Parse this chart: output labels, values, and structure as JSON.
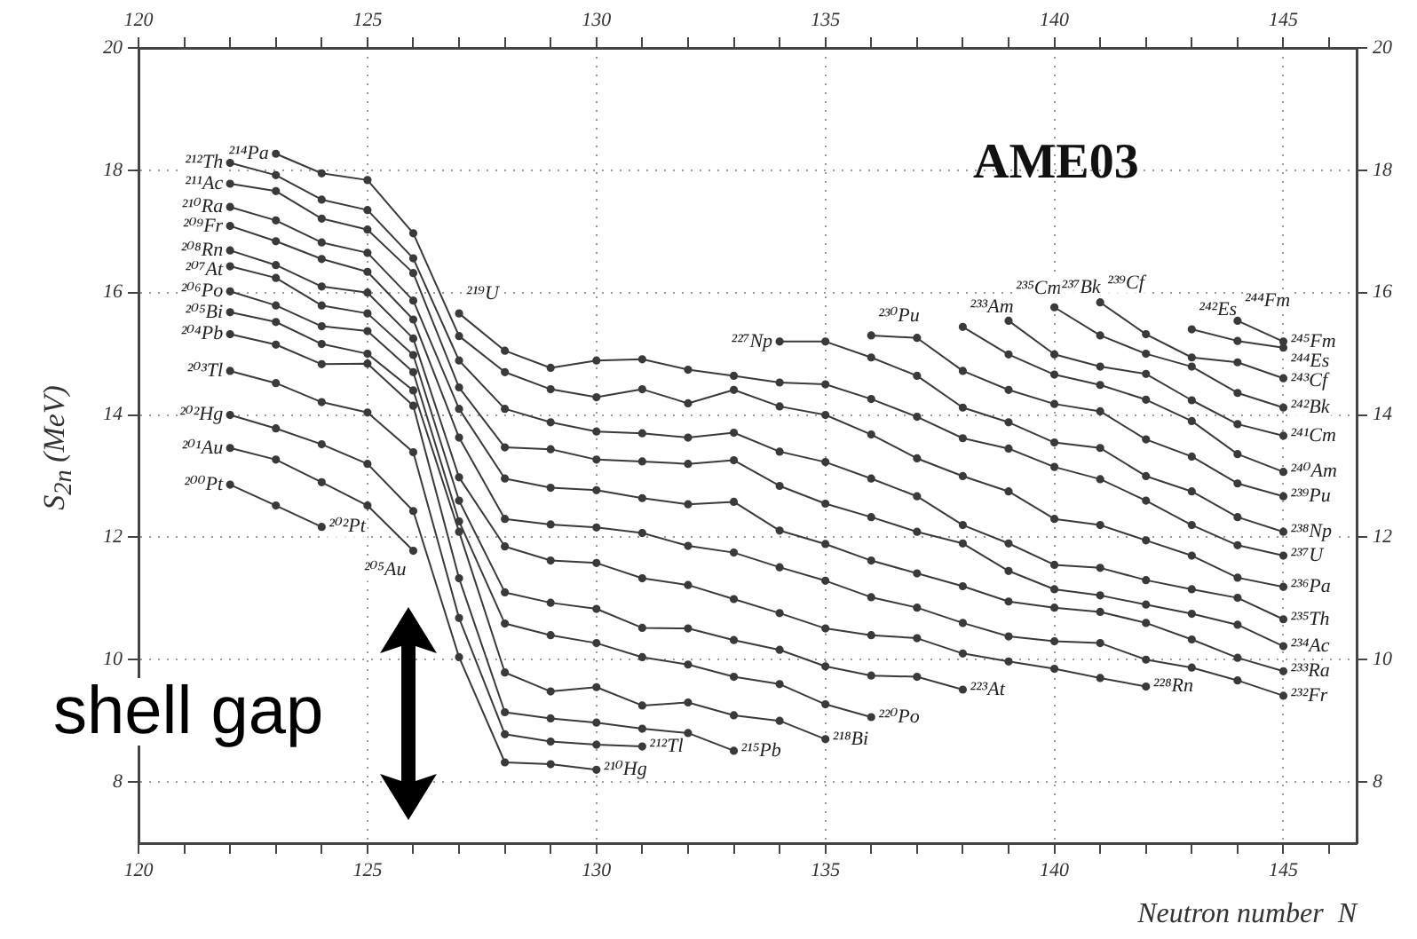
{
  "chart_data": {
    "type": "line",
    "xlabel": "Neutron number  N",
    "ylabel": "S$_{2n}$ (MeV)",
    "xlim": [
      120,
      146.6
    ],
    "x2lim": [
      120,
      146.6
    ],
    "ylim": [
      7,
      20
    ],
    "y2lim": [
      7,
      20
    ],
    "xticks": [
      120,
      {
        "value": 121,
        "label": null
      },
      {
        "value": 122,
        "label": null
      },
      {
        "value": 123,
        "label": null
      },
      {
        "value": 124,
        "label": null
      },
      125,
      {
        "value": 126,
        "label": null
      },
      {
        "value": 127,
        "label": null
      },
      {
        "value": 128,
        "label": null
      },
      {
        "value": 129,
        "label": null
      },
      130,
      {
        "value": 131,
        "label": null
      },
      {
        "value": 132,
        "label": null
      },
      {
        "value": 133,
        "label": null
      },
      {
        "value": 134,
        "label": null
      },
      135,
      {
        "value": 136,
        "label": null
      },
      {
        "value": 137,
        "label": null
      },
      {
        "value": 138,
        "label": null
      },
      {
        "value": 139,
        "label": null
      },
      140,
      {
        "value": 141,
        "label": null
      },
      {
        "value": 142,
        "label": null
      },
      {
        "value": 143,
        "label": null
      },
      {
        "value": 144,
        "label": null
      },
      145,
      {
        "value": 146,
        "label": null
      }
    ],
    "x2ticks": [
      120,
      {
        "value": 121,
        "label": null
      },
      {
        "value": 122,
        "label": null
      },
      {
        "value": 123,
        "label": null
      },
      {
        "value": 124,
        "label": null
      },
      125,
      {
        "value": 126,
        "label": null
      },
      {
        "value": 127,
        "label": null
      },
      {
        "value": 128,
        "label": null
      },
      {
        "value": 129,
        "label": null
      },
      130,
      {
        "value": 131,
        "label": null
      },
      {
        "value": 132,
        "label": null
      },
      {
        "value": 133,
        "label": null
      },
      {
        "value": 134,
        "label": null
      },
      135,
      {
        "value": 136,
        "label": null
      },
      {
        "value": 137,
        "label": null
      },
      {
        "value": 138,
        "label": null
      },
      {
        "value": 139,
        "label": null
      },
      140,
      {
        "value": 141,
        "label": null
      },
      {
        "value": 142,
        "label": null
      },
      {
        "value": 143,
        "label": null
      },
      {
        "value": 144,
        "label": null
      },
      145,
      {
        "value": 146,
        "label": null
      }
    ],
    "yticks": [
      8,
      10,
      12,
      14,
      16,
      18,
      20
    ],
    "y2ticks": [
      8,
      10,
      12,
      14,
      16,
      18,
      20
    ],
    "grid": true,
    "marker": "circle",
    "line_style": "solid",
    "series": [
      {
        "color": "#3a3a3a",
        "x": [
          122,
          123,
          124
        ],
        "values": [
          12.86,
          12.52,
          12.17
        ]
      },
      {
        "color": "#3a3a3a",
        "x": [
          122,
          123,
          124,
          125,
          126
        ],
        "values": [
          13.46,
          13.27,
          12.9,
          12.52,
          11.78
        ]
      },
      {
        "color": "#3a3a3a",
        "x": [
          122,
          123,
          124,
          125,
          126,
          127,
          128,
          129,
          130
        ],
        "values": [
          14.0,
          13.78,
          13.52,
          13.2,
          12.43,
          10.04,
          8.32,
          8.29,
          8.2
        ]
      },
      {
        "color": "#3a3a3a",
        "x": [
          122,
          123,
          124,
          125,
          126,
          127,
          128,
          129,
          130,
          131
        ],
        "values": [
          14.72,
          14.52,
          14.21,
          14.04,
          13.39,
          10.68,
          8.78,
          8.66,
          8.61,
          8.58
        ]
      },
      {
        "color": "#3a3a3a",
        "x": [
          122,
          123,
          124,
          125,
          126,
          127,
          128,
          129,
          130,
          131,
          132,
          133
        ],
        "values": [
          15.32,
          15.15,
          14.83,
          14.84,
          14.15,
          11.33,
          9.14,
          9.04,
          8.97,
          8.87,
          8.8,
          8.51
        ]
      },
      {
        "color": "#3a3a3a",
        "x": [
          122,
          123,
          124,
          125,
          126,
          127,
          128,
          129,
          130,
          131,
          132,
          133,
          134,
          135
        ],
        "values": [
          15.68,
          15.52,
          15.16,
          15.0,
          14.4,
          12.09,
          9.79,
          9.48,
          9.55,
          9.25,
          9.3,
          9.09,
          9.0,
          8.7
        ]
      },
      {
        "color": "#3a3a3a",
        "x": [
          122,
          123,
          124,
          125,
          126,
          127,
          128,
          129,
          130,
          131,
          132,
          133,
          134,
          135,
          136
        ],
        "values": [
          16.02,
          15.79,
          15.45,
          15.37,
          14.7,
          12.26,
          10.59,
          10.4,
          10.27,
          10.04,
          9.92,
          9.72,
          9.6,
          9.27,
          9.06
        ]
      },
      {
        "color": "#3a3a3a",
        "x": [
          122,
          123,
          124,
          125,
          126,
          127,
          128,
          129,
          130,
          131,
          132,
          133,
          134,
          135,
          136,
          137,
          138
        ],
        "values": [
          16.43,
          16.24,
          15.79,
          15.66,
          14.98,
          12.6,
          11.1,
          10.93,
          10.83,
          10.52,
          10.51,
          10.32,
          10.16,
          9.89,
          9.74,
          9.72,
          9.51
        ]
      },
      {
        "color": "#3a3a3a",
        "x": [
          122,
          123,
          124,
          125,
          126,
          127,
          128,
          129,
          130,
          131,
          132,
          133,
          134,
          135,
          136,
          137,
          138,
          139,
          140,
          141,
          142
        ],
        "values": [
          16.69,
          16.45,
          16.1,
          16.0,
          15.25,
          12.98,
          11.85,
          11.62,
          11.58,
          11.33,
          11.22,
          10.99,
          10.76,
          10.51,
          10.4,
          10.35,
          10.1,
          9.97,
          9.85,
          9.7,
          9.56
        ]
      },
      {
        "color": "#3a3a3a",
        "x": [
          122,
          123,
          124,
          125,
          126,
          127,
          128,
          129,
          130,
          131,
          132,
          133,
          134,
          135,
          136,
          137,
          138,
          139,
          140,
          141,
          142,
          143,
          144,
          145
        ],
        "values": [
          17.09,
          16.84,
          16.55,
          16.34,
          15.56,
          13.63,
          12.3,
          12.21,
          12.16,
          12.07,
          11.86,
          11.75,
          11.51,
          11.29,
          11.02,
          10.85,
          10.6,
          10.38,
          10.3,
          10.27,
          10.0,
          9.87,
          9.66,
          9.41
        ]
      },
      {
        "color": "#3a3a3a",
        "x": [
          122,
          123,
          124,
          125,
          126,
          127,
          128,
          129,
          130,
          131,
          132,
          133,
          134,
          135,
          136,
          137,
          138,
          139,
          140,
          141,
          142,
          143,
          144,
          145
        ],
        "values": [
          17.4,
          17.18,
          16.82,
          16.65,
          15.87,
          14.1,
          12.96,
          12.81,
          12.77,
          12.64,
          12.54,
          12.58,
          12.11,
          11.89,
          11.62,
          11.41,
          11.2,
          10.95,
          10.85,
          10.78,
          10.6,
          10.33,
          10.03,
          9.81
        ]
      },
      {
        "color": "#3a3a3a",
        "x": [
          122,
          123,
          124,
          125,
          126,
          127,
          128,
          129,
          130,
          131,
          132,
          133,
          134,
          135,
          136,
          137,
          138,
          139,
          140,
          141,
          142,
          143,
          144,
          145
        ],
        "values": [
          17.78,
          17.66,
          17.21,
          17.03,
          16.32,
          14.45,
          13.47,
          13.44,
          13.27,
          13.24,
          13.2,
          13.26,
          12.84,
          12.55,
          12.33,
          12.09,
          11.9,
          11.45,
          11.15,
          11.05,
          10.9,
          10.75,
          10.57,
          10.22
        ]
      },
      {
        "color": "#3a3a3a",
        "x": [
          122,
          123,
          124,
          125,
          126,
          127,
          128,
          129,
          130,
          131,
          132,
          133,
          134,
          135,
          136,
          137,
          138,
          139,
          140,
          141,
          142,
          143,
          144,
          145
        ],
        "values": [
          18.12,
          17.92,
          17.52,
          17.35,
          16.56,
          14.89,
          14.1,
          13.88,
          13.73,
          13.7,
          13.63,
          13.71,
          13.4,
          13.23,
          12.96,
          12.67,
          12.2,
          11.9,
          11.55,
          11.5,
          11.3,
          11.15,
          11.01,
          10.66
        ]
      },
      {
        "color": "#3a3a3a",
        "x": [
          123,
          124,
          125,
          126,
          127,
          128,
          129,
          130,
          131,
          132,
          133,
          134,
          135,
          136,
          137,
          138,
          139,
          140,
          141,
          142,
          143,
          144,
          145
        ],
        "values": [
          18.27,
          17.95,
          17.84,
          16.97,
          15.29,
          14.7,
          14.42,
          14.29,
          14.42,
          14.19,
          14.41,
          14.14,
          14.0,
          13.68,
          13.29,
          13.0,
          12.75,
          12.3,
          12.2,
          11.95,
          11.7,
          11.34,
          11.19
        ]
      },
      {
        "color": "#3a3a3a",
        "x": [
          127,
          128,
          129,
          130,
          131,
          132,
          133,
          134,
          135,
          136,
          137,
          138,
          139,
          140,
          141,
          142,
          143,
          144,
          145
        ],
        "values": [
          15.66,
          15.05,
          14.77,
          14.89,
          14.91,
          14.74,
          14.64,
          14.53,
          14.5,
          14.26,
          13.97,
          13.62,
          13.45,
          13.15,
          12.95,
          12.6,
          12.2,
          11.87,
          11.7
        ]
      },
      {
        "color": "#3a3a3a",
        "x": [
          134,
          135,
          136,
          137,
          138,
          139,
          140,
          141,
          142,
          143,
          144,
          145
        ],
        "values": [
          15.2,
          15.2,
          14.94,
          14.64,
          14.12,
          13.88,
          13.55,
          13.46,
          13.0,
          12.75,
          12.33,
          12.09
        ]
      },
      {
        "color": "#3a3a3a",
        "x": [
          136,
          137,
          138,
          139,
          140,
          141,
          142,
          143,
          144,
          145
        ],
        "values": [
          15.3,
          15.26,
          14.72,
          14.41,
          14.18,
          14.06,
          13.6,
          13.32,
          12.88,
          12.67
        ]
      },
      {
        "color": "#3a3a3a",
        "x": [
          138,
          139,
          140,
          141,
          142,
          143,
          144,
          145
        ],
        "values": [
          15.44,
          14.99,
          14.66,
          14.49,
          14.25,
          13.9,
          13.36,
          13.07
        ]
      },
      {
        "color": "#3a3a3a",
        "x": [
          139,
          140,
          141,
          142,
          143,
          144,
          145
        ],
        "values": [
          15.54,
          14.99,
          14.79,
          14.67,
          14.24,
          13.85,
          13.66
        ]
      },
      {
        "color": "#3a3a3a",
        "x": [
          140,
          141,
          142,
          143,
          144,
          145
        ],
        "values": [
          15.76,
          15.3,
          15.0,
          14.79,
          14.36,
          14.12
        ]
      },
      {
        "color": "#3a3a3a",
        "x": [
          141,
          142,
          143,
          144,
          145
        ],
        "values": [
          15.84,
          15.32,
          14.94,
          14.86,
          14.6
        ]
      },
      {
        "color": "#3a3a3a",
        "x": [
          143,
          144,
          145
        ],
        "values": [
          15.4,
          15.21,
          15.1
        ]
      },
      {
        "color": "#3a3a3a",
        "x": [
          144,
          145
        ],
        "values": [
          15.54,
          15.2
        ]
      }
    ],
    "annotations": [
      "AME03",
      "shell gap",
      {
        "text": "²⁰⁰Pt",
        "x": 122,
        "y": 12.86
      },
      {
        "text": "²⁰¹Au",
        "x": 122,
        "y": 13.46
      },
      {
        "text": "²⁰²Hg",
        "x": 122,
        "y": 14.0
      },
      {
        "text": "²⁰³Tl",
        "x": 122,
        "y": 14.72
      },
      {
        "text": "²⁰⁴Pb",
        "x": 122,
        "y": 15.32
      },
      {
        "text": "²⁰⁵Bi",
        "x": 122,
        "y": 15.68
      },
      {
        "text": "²⁰⁶Po",
        "x": 122,
        "y": 16.02
      },
      {
        "text": "²⁰⁷At",
        "x": 122,
        "y": 16.43
      },
      {
        "text": "²⁰⁸Rn",
        "x": 122,
        "y": 16.69
      },
      {
        "text": "²⁰⁹Fr",
        "x": 122,
        "y": 17.09
      },
      {
        "text": "²¹⁰Ra",
        "x": 122,
        "y": 17.4
      },
      {
        "text": "²¹¹Ac",
        "x": 122,
        "y": 17.78
      },
      {
        "text": "²¹²Th",
        "x": 122,
        "y": 18.12
      },
      {
        "text": "²¹⁴Pa",
        "x": 123,
        "y": 18.27
      },
      {
        "text": "²¹⁹U",
        "x": 127,
        "y": 15.66
      },
      {
        "text": "²²⁷Np",
        "x": 134,
        "y": 15.2
      },
      {
        "text": "²³⁰Pu",
        "x": 136,
        "y": 15.3
      },
      {
        "text": "²³³Am",
        "x": 138,
        "y": 15.44
      },
      {
        "text": "²³⁵Cm",
        "x": 139,
        "y": 15.54
      },
      {
        "text": "²³⁷Bk",
        "x": 140,
        "y": 15.76
      },
      {
        "text": "²³⁹Cf",
        "x": 141,
        "y": 15.84
      },
      {
        "text": "²⁴²Es",
        "x": 143,
        "y": 15.4
      },
      {
        "text": "²⁴⁴Fm",
        "x": 144,
        "y": 15.54
      },
      {
        "text": "²⁰²Pt",
        "x": 124,
        "y": 12.17
      },
      {
        "text": "²⁰⁵Au",
        "x": 126,
        "y": 11.78
      },
      {
        "text": "²¹⁰Hg",
        "x": 130,
        "y": 8.2
      },
      {
        "text": "²¹²Tl",
        "x": 131,
        "y": 8.58
      },
      {
        "text": "²¹⁵Pb",
        "x": 133,
        "y": 8.51
      },
      {
        "text": "²¹⁸Bi",
        "x": 135,
        "y": 8.7
      },
      {
        "text": "²²⁰Po",
        "x": 136,
        "y": 9.06
      },
      {
        "text": "²²³At",
        "x": 138,
        "y": 9.51
      },
      {
        "text": "²²⁸Rn",
        "x": 142,
        "y": 9.56
      },
      {
        "text": "²⁴⁵Fm",
        "x": 145,
        "y": 15.2
      },
      {
        "text": "²⁴⁴Es",
        "x": 145,
        "y": 15.1
      },
      {
        "text": "²⁴³Cf",
        "x": 145,
        "y": 14.6
      },
      {
        "text": "²⁴²Bk",
        "x": 145,
        "y": 14.12
      },
      {
        "text": "²⁴¹Cm",
        "x": 145,
        "y": 13.66
      },
      {
        "text": "²⁴⁰Am",
        "x": 145,
        "y": 13.07
      },
      {
        "text": "²³⁹Pu",
        "x": 145,
        "y": 12.67
      },
      {
        "text": "²³⁸Np",
        "x": 145,
        "y": 12.09
      },
      {
        "text": "²³⁷U",
        "x": 145,
        "y": 11.7
      },
      {
        "text": "²³⁶Pa",
        "x": 145,
        "y": 11.19
      },
      {
        "text": "²³⁵Th",
        "x": 145,
        "y": 10.66
      },
      {
        "text": "²³⁴Ac",
        "x": 145,
        "y": 10.22
      },
      {
        "text": "²³³Ra",
        "x": 145,
        "y": 9.81
      },
      {
        "text": "²³²Fr",
        "x": 145,
        "y": 9.41
      }
    ]
  }
}
